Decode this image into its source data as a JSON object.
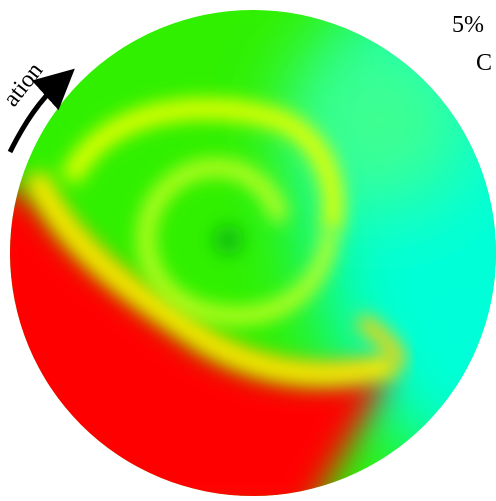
{
  "labels": {
    "percent": "5%",
    "letter": "C",
    "arrow_label": "ation"
  }
}
